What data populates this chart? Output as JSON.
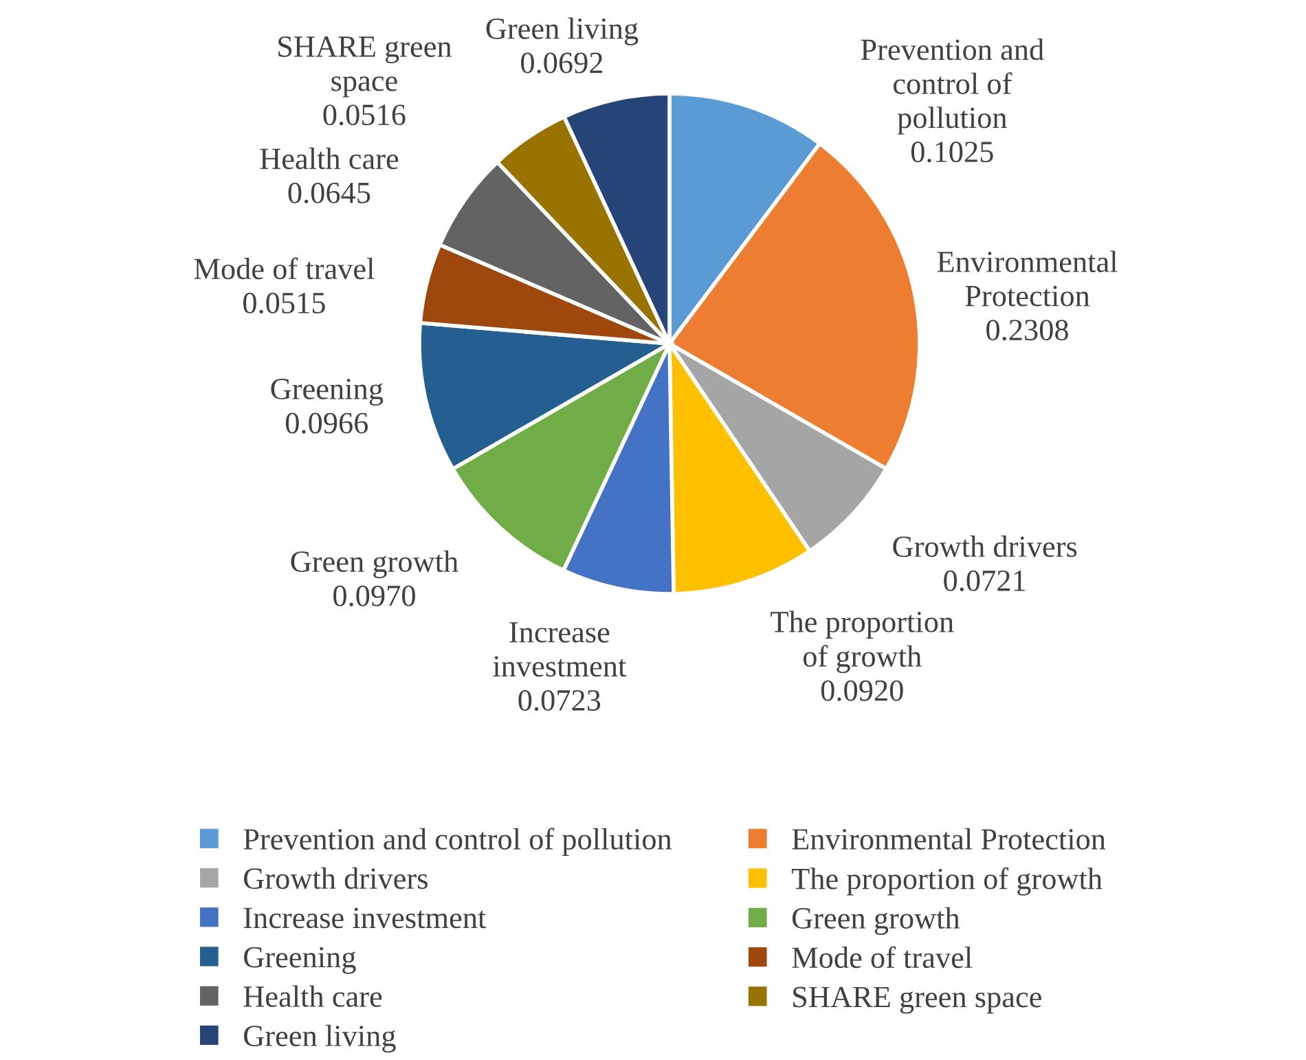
{
  "chart_data": {
    "type": "pie",
    "categories": [
      "Prevention and control of pollution",
      "Environmental Protection",
      "Growth drivers",
      "The proportion of growth",
      "Increase investment",
      "Green growth",
      "Greening",
      "Mode of travel",
      "Health care",
      "SHARE green space",
      "Green living"
    ],
    "values": [
      0.1025,
      0.2308,
      0.0721,
      0.092,
      0.0723,
      0.097,
      0.0966,
      0.0515,
      0.0645,
      0.0516,
      0.0692
    ],
    "colors": [
      "#5b9bd5",
      "#ed7d31",
      "#a5a5a5",
      "#ffc000",
      "#4472c4",
      "#70ad47",
      "#255e91",
      "#9e480e",
      "#636363",
      "#997300",
      "#264478"
    ],
    "value_labels": [
      "0.1025",
      "0.2308",
      "0.0721",
      "0.0920",
      "0.0723",
      "0.0970",
      "0.0966",
      "0.0515",
      "0.0645",
      "0.0516",
      "0.0692"
    ],
    "legend": "bottom"
  }
}
